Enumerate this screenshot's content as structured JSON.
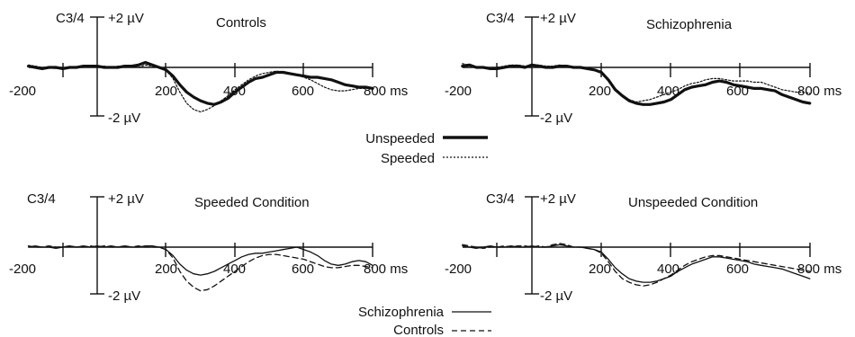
{
  "chart_data": [
    {
      "type": "line",
      "title": "Controls",
      "channel_label": "C3/4",
      "y_top_label": "+2 µV",
      "y_bottom_label": "-2 µV",
      "x_tick_labels": [
        "-200",
        "200",
        "400",
        "600",
        "800 ms"
      ],
      "xlim": [
        -200,
        800
      ],
      "ylim": [
        -2,
        2
      ],
      "series": [
        {
          "name": "Unspeeded",
          "style": "thick-solid",
          "x": [
            -200,
            -180,
            -160,
            -140,
            -120,
            -100,
            -80,
            -60,
            -40,
            -20,
            0,
            20,
            40,
            60,
            80,
            100,
            120,
            140,
            160,
            180,
            200,
            220,
            240,
            260,
            280,
            300,
            320,
            340,
            360,
            380,
            400,
            420,
            440,
            460,
            480,
            500,
            520,
            540,
            560,
            580,
            600,
            620,
            640,
            660,
            680,
            700,
            720,
            740,
            760,
            780,
            800
          ],
          "y": [
            0.05,
            0.0,
            -0.05,
            0.0,
            0.0,
            -0.05,
            0.0,
            0.0,
            0.05,
            0.05,
            0.05,
            0.0,
            0.0,
            0.0,
            0.05,
            0.05,
            0.1,
            0.2,
            0.1,
            0.0,
            -0.1,
            -0.35,
            -0.7,
            -1.0,
            -1.2,
            -1.35,
            -1.45,
            -1.5,
            -1.4,
            -1.25,
            -1.0,
            -0.8,
            -0.6,
            -0.45,
            -0.4,
            -0.3,
            -0.2,
            -0.2,
            -0.25,
            -0.3,
            -0.35,
            -0.4,
            -0.4,
            -0.45,
            -0.5,
            -0.6,
            -0.7,
            -0.75,
            -0.8,
            -0.8,
            -0.85
          ]
        },
        {
          "name": "Speeded",
          "style": "dotted",
          "x": [
            -200,
            -180,
            -160,
            -140,
            -120,
            -100,
            -80,
            -60,
            -40,
            -20,
            0,
            20,
            40,
            60,
            80,
            100,
            120,
            140,
            160,
            180,
            200,
            220,
            240,
            260,
            280,
            300,
            320,
            340,
            360,
            380,
            400,
            420,
            440,
            460,
            480,
            500,
            520,
            540,
            560,
            580,
            600,
            620,
            640,
            660,
            680,
            700,
            720,
            740,
            760,
            780,
            800
          ],
          "y": [
            0.1,
            0.05,
            0.0,
            0.0,
            -0.05,
            -0.05,
            0.0,
            0.0,
            0.0,
            0.05,
            0.0,
            0.05,
            0.0,
            0.05,
            0.0,
            0.05,
            0.0,
            0.1,
            0.05,
            0.0,
            -0.1,
            -0.45,
            -1.0,
            -1.45,
            -1.7,
            -1.8,
            -1.7,
            -1.55,
            -1.35,
            -1.15,
            -0.9,
            -0.7,
            -0.5,
            -0.35,
            -0.25,
            -0.2,
            -0.15,
            -0.2,
            -0.25,
            -0.3,
            -0.4,
            -0.5,
            -0.65,
            -0.8,
            -0.9,
            -0.95,
            -0.95,
            -0.9,
            -0.85,
            -0.85,
            -0.85
          ]
        }
      ],
      "legend_entries": [
        "Unspeeded",
        "Speeded"
      ]
    },
    {
      "type": "line",
      "title": "Schizophrenia",
      "channel_label": "C3/4",
      "y_top_label": "+2 µV",
      "y_bottom_label": "-2 µV",
      "x_tick_labels": [
        "-200",
        "200",
        "400",
        "600",
        "800 ms"
      ],
      "xlim": [
        -200,
        800
      ],
      "ylim": [
        -2,
        2
      ],
      "series": [
        {
          "name": "Unspeeded",
          "style": "thick-solid",
          "x": [
            -200,
            -180,
            -160,
            -140,
            -120,
            -100,
            -80,
            -60,
            -40,
            -20,
            0,
            20,
            40,
            60,
            80,
            100,
            120,
            140,
            160,
            180,
            200,
            220,
            240,
            260,
            280,
            300,
            320,
            340,
            360,
            380,
            400,
            420,
            440,
            460,
            480,
            500,
            520,
            540,
            560,
            580,
            600,
            620,
            640,
            660,
            680,
            700,
            720,
            740,
            760,
            780,
            800
          ],
          "y": [
            0.05,
            0.1,
            0.0,
            0.0,
            -0.05,
            -0.05,
            0.0,
            0.05,
            0.05,
            0.0,
            0.1,
            0.05,
            0.0,
            0.0,
            0.05,
            0.05,
            0.0,
            0.0,
            -0.05,
            -0.1,
            -0.2,
            -0.5,
            -0.9,
            -1.15,
            -1.35,
            -1.45,
            -1.5,
            -1.5,
            -1.45,
            -1.4,
            -1.3,
            -1.1,
            -0.9,
            -0.8,
            -0.75,
            -0.7,
            -0.6,
            -0.55,
            -0.6,
            -0.7,
            -0.75,
            -0.8,
            -0.85,
            -0.85,
            -0.9,
            -0.95,
            -1.1,
            -1.2,
            -1.3,
            -1.4,
            -1.45
          ]
        },
        {
          "name": "Speeded",
          "style": "dotted",
          "x": [
            -200,
            -180,
            -160,
            -140,
            -120,
            -100,
            -80,
            -60,
            -40,
            -20,
            0,
            20,
            40,
            60,
            80,
            100,
            120,
            140,
            160,
            180,
            200,
            220,
            240,
            260,
            280,
            300,
            320,
            340,
            360,
            380,
            400,
            420,
            440,
            460,
            480,
            500,
            520,
            540,
            560,
            580,
            600,
            620,
            640,
            660,
            680,
            700,
            720,
            740,
            760,
            780,
            800
          ],
          "y": [
            0.15,
            0.1,
            0.0,
            0.0,
            -0.05,
            0.0,
            0.05,
            0.1,
            0.1,
            0.05,
            0.1,
            0.1,
            0.05,
            0.05,
            0.1,
            0.05,
            0.0,
            0.0,
            -0.05,
            -0.1,
            -0.2,
            -0.45,
            -0.85,
            -1.1,
            -1.3,
            -1.4,
            -1.35,
            -1.3,
            -1.2,
            -1.1,
            -1.0,
            -0.9,
            -0.75,
            -0.65,
            -0.6,
            -0.5,
            -0.45,
            -0.45,
            -0.5,
            -0.55,
            -0.55,
            -0.55,
            -0.6,
            -0.6,
            -0.7,
            -0.8,
            -0.9,
            -0.95,
            -1.0,
            -1.0,
            -1.05
          ]
        }
      ],
      "legend_entries": [
        "Unspeeded",
        "Speeded"
      ]
    },
    {
      "type": "line",
      "title": "Speeded Condition",
      "channel_label": "C3/4",
      "y_top_label": "+2 µV",
      "y_bottom_label": "-2 µV",
      "x_tick_labels": [
        "-200",
        "200",
        "400",
        "600",
        "800 ms"
      ],
      "xlim": [
        -200,
        800
      ],
      "ylim": [
        -2,
        2
      ],
      "series": [
        {
          "name": "Schizophrenia",
          "style": "solid",
          "x": [
            -200,
            -180,
            -160,
            -140,
            -120,
            -100,
            -80,
            -60,
            -40,
            -20,
            0,
            20,
            40,
            60,
            80,
            100,
            120,
            140,
            160,
            180,
            200,
            220,
            240,
            260,
            280,
            300,
            320,
            340,
            360,
            380,
            400,
            420,
            440,
            460,
            480,
            500,
            520,
            540,
            560,
            580,
            600,
            620,
            640,
            660,
            680,
            700,
            720,
            740,
            760,
            780,
            800
          ],
          "y": [
            0.0,
            0.05,
            0.0,
            0.0,
            -0.05,
            0.0,
            0.05,
            0.0,
            0.05,
            0.0,
            0.05,
            0.0,
            0.05,
            0.0,
            0.05,
            0.0,
            0.0,
            0.05,
            0.05,
            0.0,
            -0.1,
            -0.35,
            -0.7,
            -0.95,
            -1.1,
            -1.15,
            -1.1,
            -1.0,
            -0.85,
            -0.7,
            -0.55,
            -0.4,
            -0.3,
            -0.25,
            -0.25,
            -0.2,
            -0.15,
            -0.1,
            -0.05,
            0.0,
            -0.1,
            -0.2,
            -0.35,
            -0.55,
            -0.7,
            -0.75,
            -0.7,
            -0.6,
            -0.55,
            -0.6,
            -0.75
          ]
        },
        {
          "name": "Controls",
          "style": "dashed",
          "x": [
            -200,
            -180,
            -160,
            -140,
            -120,
            -100,
            -80,
            -60,
            -40,
            -20,
            0,
            20,
            40,
            60,
            80,
            100,
            120,
            140,
            160,
            180,
            200,
            220,
            240,
            260,
            280,
            300,
            320,
            340,
            360,
            380,
            400,
            420,
            440,
            460,
            480,
            500,
            520,
            540,
            560,
            580,
            600,
            620,
            640,
            660,
            680,
            700,
            720,
            740,
            760,
            780,
            800
          ],
          "y": [
            0.05,
            0.0,
            0.0,
            0.05,
            0.0,
            0.0,
            0.05,
            0.0,
            0.0,
            0.05,
            0.0,
            0.05,
            0.0,
            0.0,
            0.05,
            0.0,
            0.05,
            0.0,
            0.0,
            0.0,
            -0.1,
            -0.45,
            -1.0,
            -1.4,
            -1.65,
            -1.8,
            -1.75,
            -1.6,
            -1.4,
            -1.2,
            -1.0,
            -0.8,
            -0.6,
            -0.45,
            -0.35,
            -0.3,
            -0.3,
            -0.35,
            -0.4,
            -0.45,
            -0.5,
            -0.6,
            -0.7,
            -0.8,
            -0.85,
            -0.85,
            -0.8,
            -0.75,
            -0.75,
            -0.8,
            -0.85
          ]
        }
      ],
      "legend_entries": [
        "Schizophrenia",
        "Controls"
      ]
    },
    {
      "type": "line",
      "title": "Unspeeded Condition",
      "channel_label": "C3/4",
      "y_top_label": "+2 µV",
      "y_bottom_label": "-2 µV",
      "x_tick_labels": [
        "-200",
        "200",
        "400",
        "600",
        "800 ms"
      ],
      "xlim": [
        -200,
        800
      ],
      "ylim": [
        -2,
        2
      ],
      "series": [
        {
          "name": "Schizophrenia",
          "style": "solid",
          "x": [
            -200,
            -180,
            -160,
            -140,
            -120,
            -100,
            -80,
            -60,
            -40,
            -20,
            0,
            20,
            40,
            60,
            80,
            100,
            120,
            140,
            160,
            180,
            200,
            220,
            240,
            260,
            280,
            300,
            320,
            340,
            360,
            380,
            400,
            420,
            440,
            460,
            480,
            500,
            520,
            540,
            560,
            580,
            600,
            620,
            640,
            660,
            680,
            700,
            720,
            740,
            760,
            780,
            800
          ],
          "y": [
            0.05,
            0.0,
            -0.05,
            0.0,
            0.05,
            0.0,
            0.0,
            0.05,
            0.0,
            0.0,
            0.05,
            0.0,
            0.0,
            0.05,
            0.1,
            0.05,
            0.0,
            0.0,
            -0.05,
            -0.1,
            -0.2,
            -0.5,
            -0.85,
            -1.1,
            -1.3,
            -1.4,
            -1.45,
            -1.45,
            -1.4,
            -1.3,
            -1.2,
            -1.0,
            -0.85,
            -0.7,
            -0.6,
            -0.5,
            -0.4,
            -0.4,
            -0.45,
            -0.5,
            -0.55,
            -0.6,
            -0.7,
            -0.75,
            -0.8,
            -0.85,
            -0.9,
            -1.0,
            -1.1,
            -1.2,
            -1.3
          ]
        },
        {
          "name": "Controls",
          "style": "dashed",
          "x": [
            -200,
            -180,
            -160,
            -140,
            -120,
            -100,
            -80,
            -60,
            -40,
            -20,
            0,
            20,
            40,
            60,
            80,
            100,
            120,
            140,
            160,
            180,
            200,
            220,
            240,
            260,
            280,
            300,
            320,
            340,
            360,
            380,
            400,
            420,
            440,
            460,
            480,
            500,
            520,
            540,
            560,
            580,
            600,
            620,
            640,
            660,
            680,
            700,
            720,
            740,
            760,
            780,
            800
          ],
          "y": [
            0.1,
            0.05,
            0.0,
            -0.05,
            0.0,
            0.0,
            0.05,
            0.0,
            0.05,
            0.05,
            0.0,
            0.05,
            0.0,
            0.1,
            0.15,
            0.1,
            0.0,
            0.0,
            -0.05,
            -0.1,
            -0.25,
            -0.6,
            -1.0,
            -1.3,
            -1.45,
            -1.55,
            -1.6,
            -1.55,
            -1.45,
            -1.3,
            -1.15,
            -0.95,
            -0.75,
            -0.6,
            -0.5,
            -0.4,
            -0.35,
            -0.35,
            -0.4,
            -0.45,
            -0.5,
            -0.55,
            -0.6,
            -0.65,
            -0.7,
            -0.75,
            -0.8,
            -0.85,
            -0.9,
            -0.95,
            -1.0
          ]
        }
      ],
      "legend_entries": [
        "Schizophrenia",
        "Controls"
      ]
    }
  ],
  "legends": [
    {
      "entries": [
        {
          "label": "Unspeeded",
          "style": "thick-solid"
        },
        {
          "label": "Speeded",
          "style": "dotted"
        }
      ]
    },
    {
      "entries": [
        {
          "label": "Schizophrenia",
          "style": "solid"
        },
        {
          "label": "Controls",
          "style": "dashed"
        }
      ]
    }
  ]
}
